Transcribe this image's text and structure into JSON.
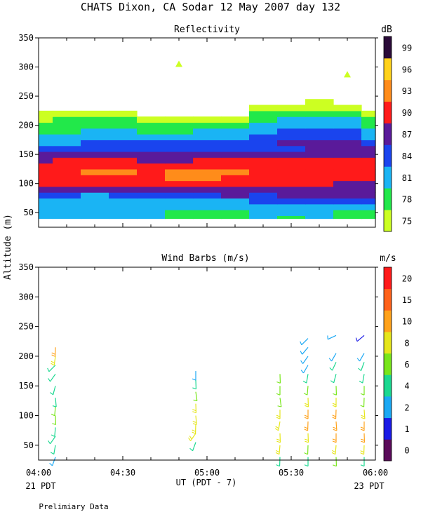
{
  "header": {
    "title": "CHATS Dixon, CA  Sodar  12 May 2007  day 132",
    "footnote": "Prelimiary Data"
  },
  "axes": {
    "ylabel": "Altitude (m)",
    "xlabel": "UT  (PDT - 7)",
    "x_ticks": [
      "04:00",
      "04:30",
      "05:00",
      "05:30",
      "06:00"
    ],
    "x_start_note": "21 PDT",
    "x_end_note": "23 PDT",
    "x_range_minutes": [
      0,
      120
    ],
    "y_range_m": [
      25,
      350
    ],
    "y_ticks": [
      50,
      100,
      150,
      200,
      250,
      300,
      350
    ]
  },
  "chart_data": [
    {
      "type": "heatmap",
      "title": "Reflectivity",
      "colorbar_title": "dB",
      "x_minutes": [
        0,
        10,
        20,
        30,
        40,
        50,
        60,
        70,
        80,
        90,
        100,
        110,
        120
      ],
      "altitudes_m": [
        40,
        50,
        60,
        70,
        80,
        90,
        100,
        110,
        120,
        130,
        140,
        150,
        160,
        170,
        180,
        190,
        200,
        210,
        220,
        230,
        240
      ],
      "levels": [
        75,
        78,
        81,
        84,
        87,
        90,
        93,
        96,
        99
      ],
      "level_colors": [
        "#ccff22",
        "#22e84a",
        "#1ab4f4",
        "#1a44ee",
        "#5a1a9a",
        "#ff1a1a",
        "#ff8c1a",
        "#ffd21a",
        "#2a0a38"
      ],
      "colorbar_labels": [
        "75",
        "78",
        "81",
        "84",
        "87",
        "90",
        "93",
        "96",
        "99"
      ],
      "grid": [
        [
          81,
          81,
          81,
          81,
          81,
          78,
          78,
          78,
          81,
          78,
          81,
          78,
          78
        ],
        [
          81,
          81,
          81,
          81,
          81,
          78,
          78,
          78,
          81,
          81,
          81,
          78,
          78
        ],
        [
          81,
          81,
          81,
          81,
          81,
          81,
          81,
          81,
          81,
          81,
          81,
          81,
          81
        ],
        [
          81,
          81,
          81,
          81,
          81,
          81,
          81,
          81,
          84,
          84,
          84,
          84,
          84
        ],
        [
          84,
          84,
          81,
          84,
          84,
          84,
          84,
          87,
          84,
          87,
          87,
          87,
          87
        ],
        [
          87,
          87,
          87,
          87,
          87,
          87,
          87,
          87,
          87,
          87,
          87,
          87,
          87
        ],
        [
          90,
          90,
          90,
          90,
          90,
          90,
          90,
          90,
          90,
          90,
          90,
          87,
          87
        ],
        [
          90,
          90,
          90,
          90,
          90,
          93,
          93,
          90,
          90,
          90,
          90,
          90,
          90
        ],
        [
          90,
          90,
          93,
          93,
          90,
          93,
          93,
          93,
          90,
          90,
          90,
          90,
          90
        ],
        [
          90,
          90,
          90,
          90,
          90,
          90,
          90,
          90,
          90,
          90,
          90,
          90,
          90
        ],
        [
          87,
          90,
          90,
          90,
          87,
          87,
          90,
          90,
          90,
          90,
          90,
          90,
          90
        ],
        [
          87,
          87,
          87,
          87,
          87,
          87,
          87,
          87,
          87,
          87,
          87,
          87,
          87
        ],
        [
          84,
          84,
          84,
          84,
          84,
          84,
          84,
          84,
          84,
          84,
          87,
          87,
          87
        ],
        [
          81,
          81,
          84,
          84,
          84,
          84,
          84,
          84,
          84,
          87,
          87,
          87,
          84
        ],
        [
          81,
          81,
          81,
          81,
          81,
          81,
          81,
          81,
          84,
          84,
          84,
          84,
          81
        ],
        [
          78,
          78,
          81,
          81,
          78,
          78,
          81,
          81,
          81,
          84,
          84,
          84,
          81
        ],
        [
          78,
          78,
          78,
          78,
          78,
          78,
          78,
          78,
          81,
          81,
          81,
          81,
          78
        ],
        [
          75,
          78,
          78,
          78,
          75,
          75,
          75,
          75,
          78,
          81,
          81,
          81,
          78
        ],
        [
          75,
          75,
          75,
          75,
          null,
          null,
          null,
          null,
          78,
          78,
          78,
          78,
          75
        ],
        [
          null,
          null,
          null,
          null,
          null,
          null,
          null,
          null,
          75,
          75,
          75,
          75,
          null
        ],
        [
          null,
          null,
          null,
          null,
          null,
          null,
          null,
          null,
          null,
          null,
          75,
          null,
          null
        ]
      ],
      "markers": [
        {
          "x_minutes": 50,
          "altitude_m": 305
        },
        {
          "x_minutes": 110,
          "altitude_m": 287
        }
      ]
    },
    {
      "type": "barbs",
      "title": "Wind Barbs (m/s)",
      "colorbar_title": "m/s",
      "levels": [
        0,
        1,
        2,
        4,
        6,
        8,
        10,
        15,
        20
      ],
      "level_colors": [
        "#5a0a5a",
        "#1a1ae6",
        "#1aa8f4",
        "#1ad890",
        "#78e61a",
        "#e6e61a",
        "#ffa21a",
        "#ff621a",
        "#ff1a1a"
      ],
      "colorbar_labels": [
        "0",
        "1",
        "2",
        "4",
        "6",
        "8",
        "10",
        "15",
        "20"
      ],
      "profiles": [
        {
          "x_minutes": 6,
          "points": [
            {
              "altitude_m": 30,
              "speed": 3,
              "dir": 200
            },
            {
              "altitude_m": 50,
              "speed": 5,
              "dir": 190
            },
            {
              "altitude_m": 65,
              "speed": 5,
              "dir": 215
            },
            {
              "altitude_m": 80,
              "speed": 5,
              "dir": 185
            },
            {
              "altitude_m": 100,
              "speed": 6,
              "dir": 178
            },
            {
              "altitude_m": 115,
              "speed": 6,
              "dir": 185
            },
            {
              "altitude_m": 130,
              "speed": 5,
              "dir": 175
            },
            {
              "altitude_m": 150,
              "speed": 4,
              "dir": 195
            },
            {
              "altitude_m": 170,
              "speed": 5,
              "dir": 215
            },
            {
              "altitude_m": 185,
              "speed": 5,
              "dir": 225
            },
            {
              "altitude_m": 200,
              "speed": 8,
              "dir": 188
            },
            {
              "altitude_m": 215,
              "speed": 10,
              "dir": 182
            }
          ]
        },
        {
          "x_minutes": 56,
          "points": [
            {
              "altitude_m": 55,
              "speed": 5,
              "dir": 200
            },
            {
              "altitude_m": 70,
              "speed": 8,
              "dir": 215
            },
            {
              "altitude_m": 85,
              "speed": 8,
              "dir": 182
            },
            {
              "altitude_m": 100,
              "speed": 8,
              "dir": 175
            },
            {
              "altitude_m": 120,
              "speed": 8,
              "dir": 178
            },
            {
              "altitude_m": 140,
              "speed": 6,
              "dir": 172
            },
            {
              "altitude_m": 160,
              "speed": 4,
              "dir": 178
            },
            {
              "altitude_m": 175,
              "speed": 3,
              "dir": 180
            }
          ]
        },
        {
          "x_minutes": 86,
          "points": [
            {
              "altitude_m": 30,
              "speed": 5,
              "dir": 182
            },
            {
              "altitude_m": 50,
              "speed": 8,
              "dir": 185
            },
            {
              "altitude_m": 70,
              "speed": 8,
              "dir": 178
            },
            {
              "altitude_m": 90,
              "speed": 8,
              "dir": 190
            },
            {
              "altitude_m": 110,
              "speed": 8,
              "dir": 180
            },
            {
              "altitude_m": 130,
              "speed": 6,
              "dir": 172
            },
            {
              "altitude_m": 150,
              "speed": 6,
              "dir": 180
            },
            {
              "altitude_m": 170,
              "speed": 6,
              "dir": 178
            }
          ]
        },
        {
          "x_minutes": 96,
          "points": [
            {
              "altitude_m": 30,
              "speed": 4,
              "dir": 180
            },
            {
              "altitude_m": 50,
              "speed": 6,
              "dir": 182
            },
            {
              "altitude_m": 70,
              "speed": 8,
              "dir": 178
            },
            {
              "altitude_m": 90,
              "speed": 10,
              "dir": 182
            },
            {
              "altitude_m": 110,
              "speed": 10,
              "dir": 180
            },
            {
              "altitude_m": 130,
              "speed": 8,
              "dir": 178
            },
            {
              "altitude_m": 150,
              "speed": 6,
              "dir": 185
            },
            {
              "altitude_m": 170,
              "speed": 4,
              "dir": 190
            },
            {
              "altitude_m": 185,
              "speed": 2,
              "dir": 210
            },
            {
              "altitude_m": 200,
              "speed": 2,
              "dir": 215
            },
            {
              "altitude_m": 215,
              "speed": 2,
              "dir": 220
            },
            {
              "altitude_m": 230,
              "speed": 2,
              "dir": 225
            }
          ]
        },
        {
          "x_minutes": 106,
          "points": [
            {
              "altitude_m": 30,
              "speed": 6,
              "dir": 178
            },
            {
              "altitude_m": 50,
              "speed": 8,
              "dir": 185
            },
            {
              "altitude_m": 70,
              "speed": 10,
              "dir": 180
            },
            {
              "altitude_m": 90,
              "speed": 10,
              "dir": 176
            },
            {
              "altitude_m": 110,
              "speed": 10,
              "dir": 182
            },
            {
              "altitude_m": 130,
              "speed": 8,
              "dir": 180
            },
            {
              "altitude_m": 150,
              "speed": 6,
              "dir": 178
            },
            {
              "altitude_m": 170,
              "speed": 4,
              "dir": 195
            },
            {
              "altitude_m": 190,
              "speed": 4,
              "dir": 205
            },
            {
              "altitude_m": 205,
              "speed": 2,
              "dir": 210
            },
            {
              "altitude_m": 235,
              "speed": 2,
              "dir": 245
            }
          ]
        },
        {
          "x_minutes": 116,
          "points": [
            {
              "altitude_m": 30,
              "speed": 4,
              "dir": 180
            },
            {
              "altitude_m": 50,
              "speed": 8,
              "dir": 182
            },
            {
              "altitude_m": 70,
              "speed": 10,
              "dir": 178
            },
            {
              "altitude_m": 90,
              "speed": 10,
              "dir": 180
            },
            {
              "altitude_m": 110,
              "speed": 8,
              "dir": 176
            },
            {
              "altitude_m": 130,
              "speed": 6,
              "dir": 182
            },
            {
              "altitude_m": 150,
              "speed": 6,
              "dir": 180
            },
            {
              "altitude_m": 170,
              "speed": 4,
              "dir": 190
            },
            {
              "altitude_m": 190,
              "speed": 4,
              "dir": 200
            },
            {
              "altitude_m": 205,
              "speed": 2,
              "dir": 210
            },
            {
              "altitude_m": 235,
              "speed": 1,
              "dir": 230
            }
          ]
        }
      ]
    }
  ]
}
